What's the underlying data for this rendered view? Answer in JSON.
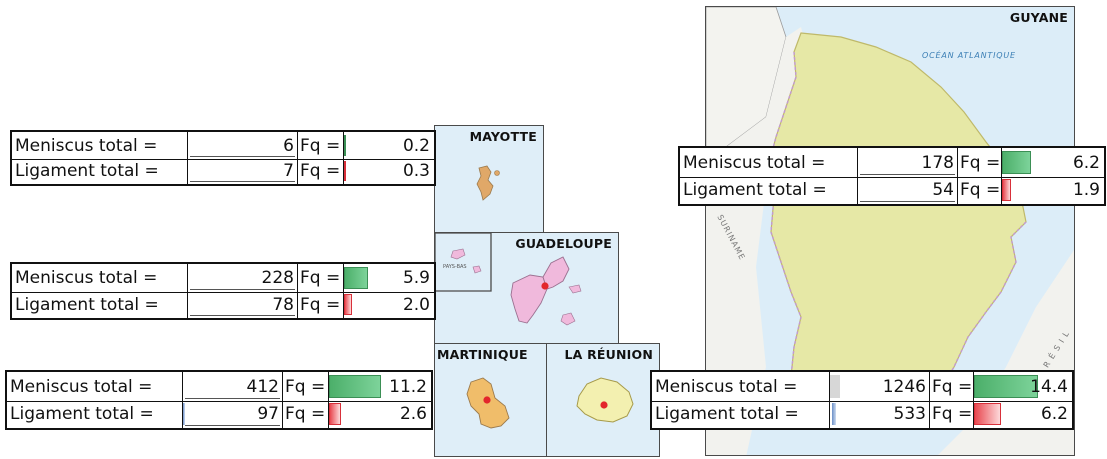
{
  "territories": {
    "mayotte": {
      "title": "MAYOTTE",
      "meniscus": {
        "label": "Meniscus total =",
        "total": "6",
        "fq_label": "Fq =",
        "fq": "0.2",
        "fq_value": 0.2
      },
      "ligament": {
        "label": "Ligament total =",
        "total": "7",
        "fq_label": "Fq =",
        "fq": "0.3",
        "fq_value": 0.3
      }
    },
    "guadeloupe": {
      "title": "GUADELOUPE",
      "inset_label": "PAYS-BAS",
      "meniscus": {
        "label": "Meniscus total =",
        "total": "228",
        "fq_label": "Fq =",
        "fq": "5.9",
        "fq_value": 5.9
      },
      "ligament": {
        "label": "Ligament total =",
        "total": "78",
        "fq_label": "Fq =",
        "fq": "2.0",
        "fq_value": 2.0
      }
    },
    "martinique": {
      "title": "MARTINIQUE",
      "meniscus": {
        "label": "Meniscus total =",
        "total": "412",
        "fq_label": "Fq =",
        "fq": "11.2",
        "fq_value": 11.2
      },
      "ligament": {
        "label": "Ligament total =",
        "total": "97",
        "fq_label": "Fq =",
        "fq": "2.6",
        "fq_value": 2.6
      }
    },
    "reunion": {
      "title": "LA RÉUNION",
      "meniscus": {
        "label": "Meniscus total =",
        "total": "1246",
        "fq_label": "Fq =",
        "fq": "14.4",
        "fq_value": 14.4
      },
      "ligament": {
        "label": "Ligament total =",
        "total": "533",
        "fq_label": "Fq =",
        "fq": "6.2",
        "fq_value": 6.2
      }
    },
    "guyane": {
      "title": "GUYANE",
      "ocean_label": "OCÉAN ATLANTIQUE",
      "suriname_label": "SURINAME",
      "brazil_label": "B R É S I L",
      "meniscus": {
        "label": "Meniscus total =",
        "total": "178",
        "fq_label": "Fq =",
        "fq": "6.2",
        "fq_value": 6.2
      },
      "ligament": {
        "label": "Ligament total =",
        "total": "54",
        "fq_label": "Fq =",
        "fq": "1.9",
        "fq_value": 1.9
      }
    }
  },
  "colors": {
    "sea": "#dfeef8",
    "land_guyane": "#e6e8a6",
    "land_mayotte": "#e0a868",
    "land_guadeloupe": "#f0b9dc",
    "land_martinique": "#f0bd6a",
    "land_reunion": "#f3f0b0",
    "marker": "#e3262c",
    "bar_green": "#4caf6a",
    "bar_red": "#e8474f"
  }
}
